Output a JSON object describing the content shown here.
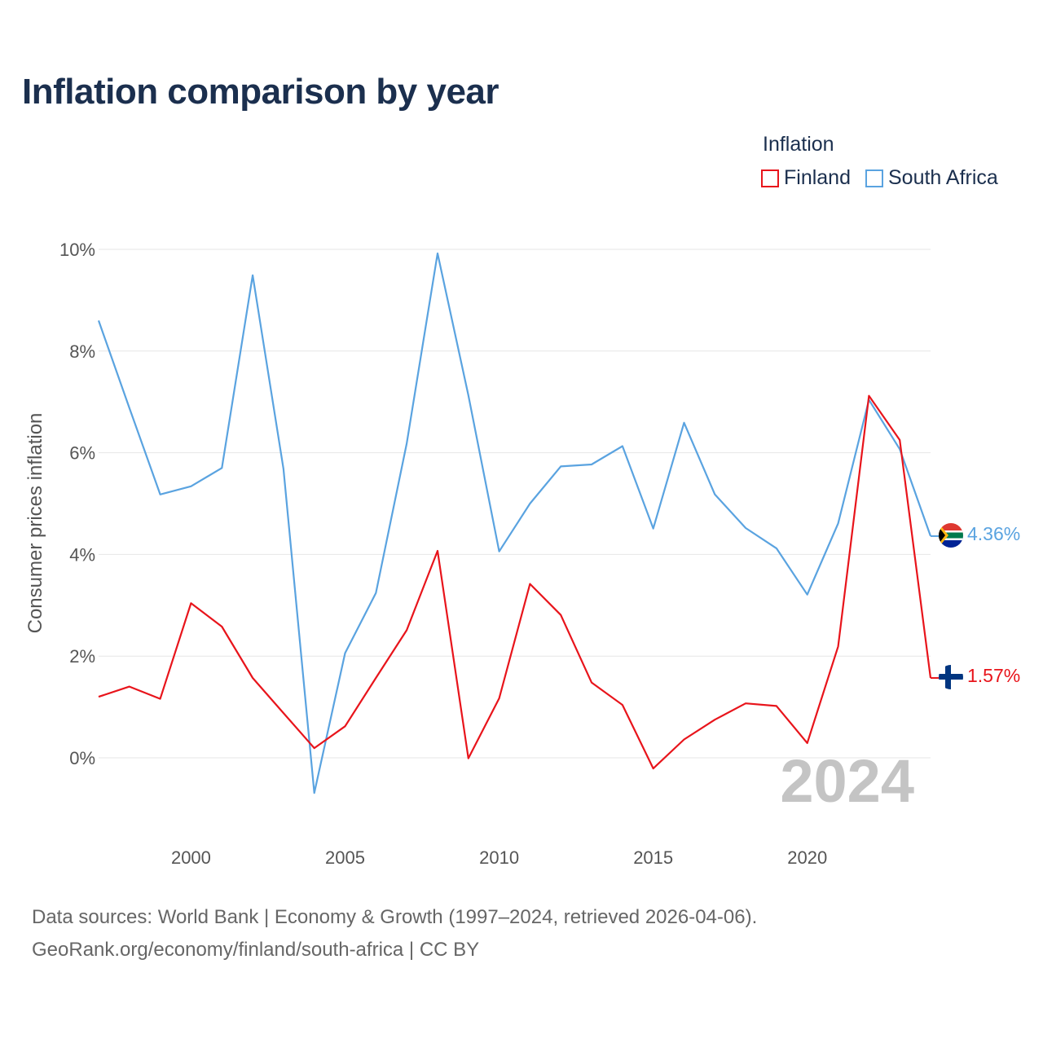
{
  "title": "Inflation comparison by year",
  "legend": {
    "title": "Inflation",
    "items": [
      {
        "label": "Finland",
        "color": "#e8141b"
      },
      {
        "label": "South Africa",
        "color": "#5aa3e0"
      }
    ]
  },
  "year_watermark": "2024",
  "footer": {
    "line1": "Data sources: World Bank | Economy & Growth (1997–2024, retrieved 2026-04-06).",
    "line2": "GeoRank.org/economy/finland/south-africa | CC BY"
  },
  "chart_data": {
    "type": "line",
    "title": "Inflation comparison by year",
    "xlabel": "",
    "ylabel": "Consumer prices inflation",
    "xlim": [
      1997,
      2024
    ],
    "ylim": [
      -1.3,
      10.3
    ],
    "x_ticks": [
      2000,
      2005,
      2010,
      2015,
      2020
    ],
    "y_ticks": [
      0,
      2,
      4,
      6,
      8,
      10
    ],
    "y_tick_labels": [
      "0%",
      "2%",
      "4%",
      "6%",
      "8%",
      "10%"
    ],
    "x": [
      1997,
      1998,
      1999,
      2000,
      2001,
      2002,
      2003,
      2004,
      2005,
      2006,
      2007,
      2008,
      2009,
      2010,
      2011,
      2012,
      2013,
      2014,
      2015,
      2016,
      2017,
      2018,
      2019,
      2020,
      2021,
      2022,
      2023,
      2024
    ],
    "series": [
      {
        "name": "Finland",
        "color": "#e8141b",
        "values": [
          1.2,
          1.4,
          1.16,
          3.04,
          2.58,
          1.57,
          0.88,
          0.19,
          0.62,
          1.57,
          2.51,
          4.07,
          -0.01,
          1.17,
          3.42,
          2.81,
          1.48,
          1.04,
          -0.21,
          0.36,
          0.75,
          1.07,
          1.02,
          0.29,
          2.19,
          7.12,
          6.25,
          1.57
        ],
        "end_label": "1.57%"
      },
      {
        "name": "South Africa",
        "color": "#5aa3e0",
        "values": [
          8.6,
          6.88,
          5.18,
          5.34,
          5.7,
          9.49,
          5.68,
          -0.69,
          2.06,
          3.24,
          6.18,
          9.92,
          7.13,
          4.06,
          5.0,
          5.73,
          5.77,
          6.13,
          4.51,
          6.59,
          5.18,
          4.52,
          4.12,
          3.21,
          4.61,
          7.04,
          6.07,
          4.36
        ],
        "end_label": "4.36%"
      }
    ]
  }
}
